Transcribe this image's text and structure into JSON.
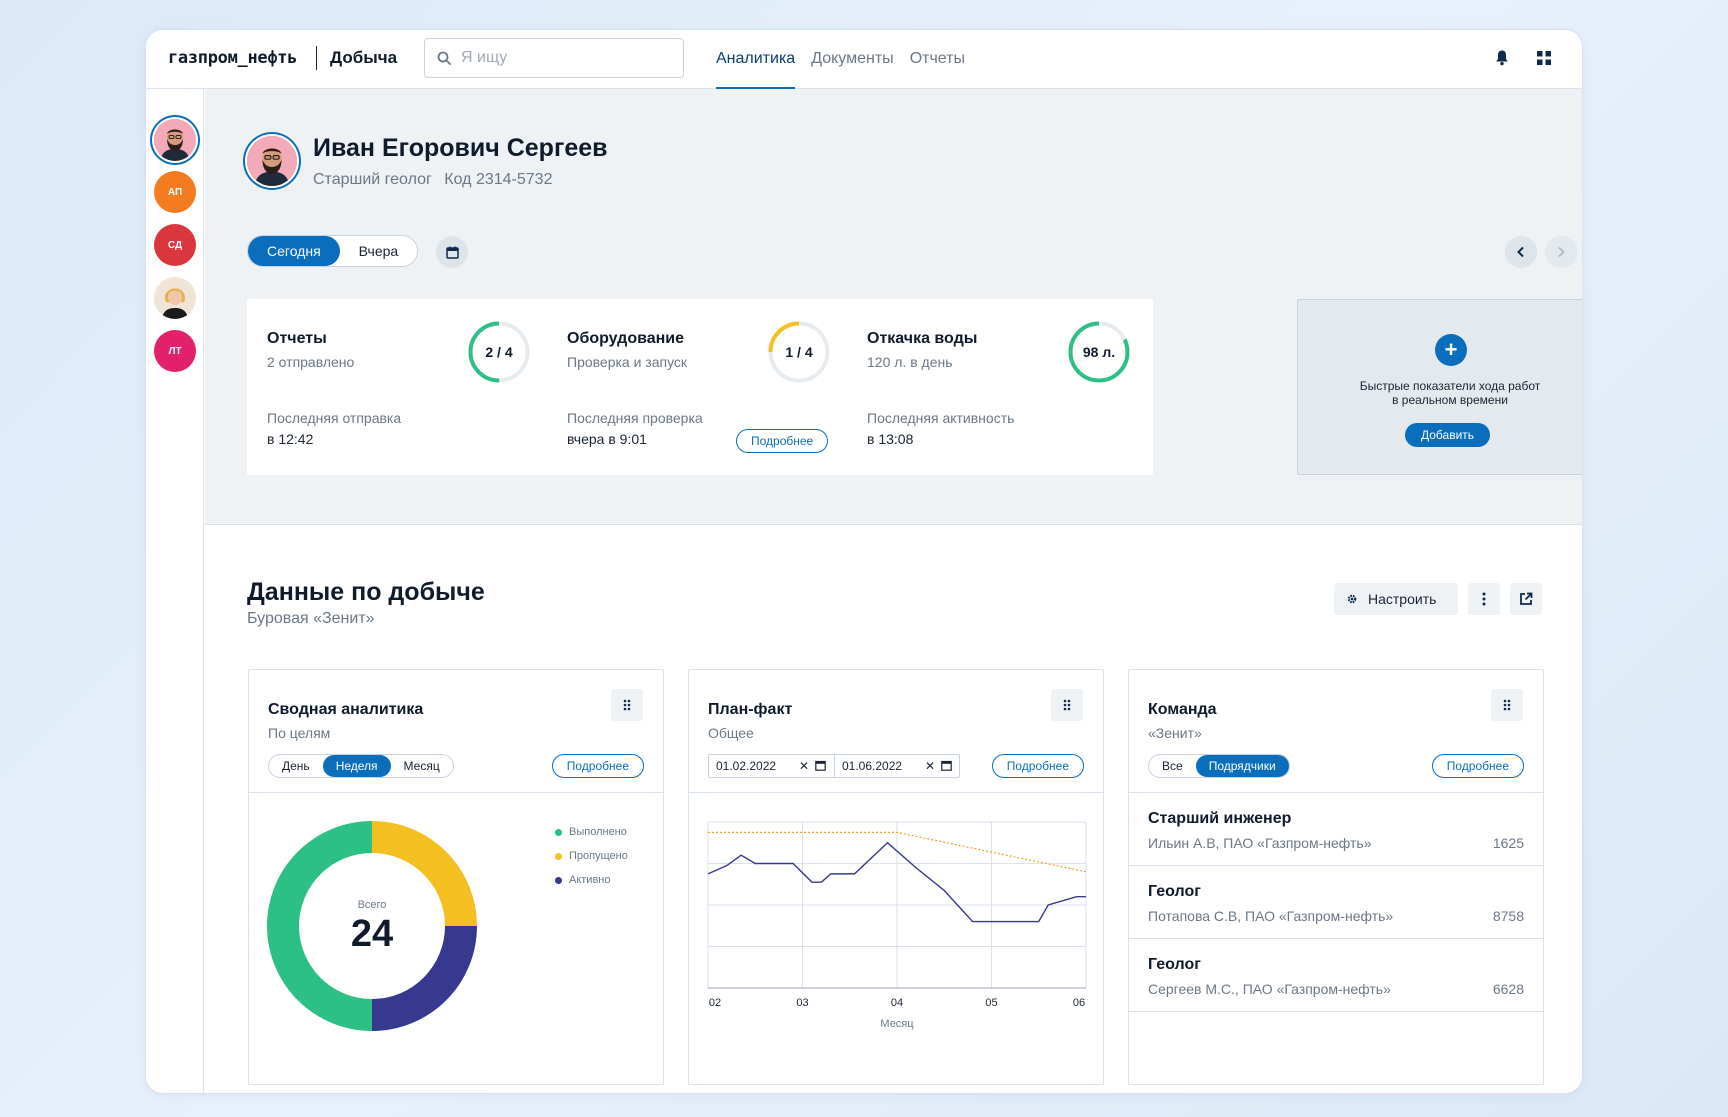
{
  "header": {
    "brand": "газпром_нефть",
    "section": "Добыча",
    "search_placeholder": "Я ищу",
    "tabs": [
      {
        "label": "Аналитика",
        "active": true
      },
      {
        "label": "Документы",
        "active": false
      },
      {
        "label": "Отчеты",
        "active": false
      }
    ],
    "icons": [
      "search-icon",
      "bell-icon",
      "apps-grid-icon"
    ]
  },
  "sidebar": {
    "avatars": [
      {
        "initials": "",
        "color": "#f4a9b8",
        "type": "photo",
        "selected": true
      },
      {
        "initials": "АП",
        "color": "#f47b20"
      },
      {
        "initials": "СД",
        "color": "#d9363e"
      },
      {
        "initials": "",
        "color": "#f3e3cf",
        "type": "photo"
      },
      {
        "initials": "ЛТ",
        "color": "#e3206a"
      }
    ]
  },
  "profile": {
    "name": "Иван Егорович Сергеев",
    "role": "Старший геолог",
    "code": "Код 2314-5732"
  },
  "period": {
    "options": [
      "Сегодня",
      "Вчера"
    ],
    "selected": "Сегодня"
  },
  "cards": [
    {
      "title": "Отчеты",
      "subtitle": "2 отправлено",
      "ring_label": "2 / 4",
      "ring_fraction": 0.5,
      "ring_color": "#2cbf86",
      "footer_label": "Последняя отправка",
      "footer_value": "в 12:42",
      "button": ""
    },
    {
      "title": "Оборудование",
      "subtitle": "Проверка и запуск",
      "ring_label": "1 / 4",
      "ring_fraction": 0.25,
      "ring_color": "#f4c021",
      "footer_label": "Последняя проверка",
      "footer_value": "вчера в 9:01",
      "button": "Подробнее"
    },
    {
      "title": "Откачка воды",
      "subtitle": "120 л. в день",
      "ring_label": "98 л.",
      "ring_fraction": 0.82,
      "ring_color": "#2cbf86",
      "footer_label": "Последняя активность",
      "footer_value": "в 13:08",
      "button": ""
    }
  ],
  "add_card": {
    "line1": "Быстрые показатели хода работ",
    "line2": "в реальном времени",
    "button": "Добавить"
  },
  "data_section": {
    "title": "Данные по добыче",
    "subtitle": "Буровая «Зенит»",
    "configure": "Настроить"
  },
  "panels": {
    "summary": {
      "title": "Сводная аналитика",
      "subtitle": "По целям",
      "periods": [
        "День",
        "Неделя",
        "Месяц"
      ],
      "selected": "Неделя",
      "more": "Подробнее"
    },
    "planfact": {
      "title": "План-факт",
      "subtitle": "Общее",
      "date_from": "01.02.2022",
      "date_to": "01.06.2022",
      "more": "Подробнее"
    },
    "team": {
      "title": "Команда",
      "subtitle": "«Зенит»",
      "filters": [
        "Все",
        "Подрядчики"
      ],
      "selected": "Подрядчики",
      "more": "Подробнее",
      "members": [
        {
          "role": "Старший инженер",
          "name": "Ильин А.В, ПАО «Газпром-нефть»",
          "num": "1625"
        },
        {
          "role": "Геолог",
          "name": "Потапова С.В, ПАО «Газпром-нефть»",
          "num": "8758"
        },
        {
          "role": "Геолог",
          "name": "Сергеев М.С., ПАО «Газпром-нефть»",
          "num": "6628"
        }
      ]
    }
  },
  "chart_data": [
    {
      "type": "pie",
      "donut": true,
      "center_label": "Всего",
      "total": "24",
      "categories": [
        "Выполнено",
        "Пропущено",
        "Активно"
      ],
      "values": [
        12,
        6,
        6
      ],
      "colors": [
        "#2cbf86",
        "#f4c021",
        "#37398e"
      ],
      "legend_position": "right"
    },
    {
      "type": "line",
      "xlabel": "Месяц",
      "xticks": [
        "02",
        "03",
        "04",
        "05",
        "06"
      ],
      "xlim": [
        2,
        6
      ],
      "ylim": [
        0,
        4
      ],
      "grid": true,
      "series": [
        {
          "style": "solid",
          "color": "#37398e",
          "x": [
            2,
            2.2,
            2.35,
            2.5,
            2.6,
            2.9,
            3.1,
            3.2,
            3.3,
            3.5,
            3.55,
            3.9,
            4.2,
            4.5,
            4.8,
            5.1,
            5.3,
            5.5,
            5.6,
            5.9,
            6
          ],
          "y": [
            2.75,
            2.95,
            3.2,
            3.0,
            3.0,
            3.0,
            2.55,
            2.55,
            2.75,
            2.75,
            2.75,
            3.5,
            2.9,
            2.35,
            1.6,
            1.6,
            1.6,
            1.6,
            2.0,
            2.2,
            2.2
          ]
        },
        {
          "style": "dashed",
          "color": "#f4a024",
          "x": [
            2,
            4,
            6
          ],
          "y": [
            3.75,
            3.75,
            2.8
          ]
        }
      ]
    }
  ]
}
